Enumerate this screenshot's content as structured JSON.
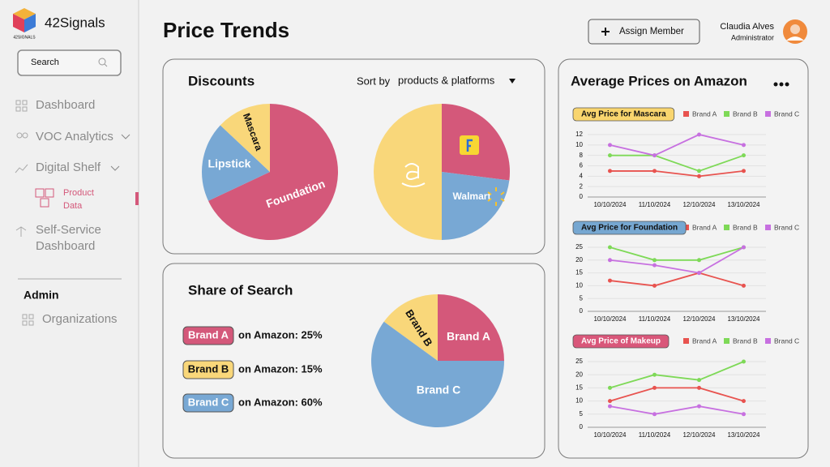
{
  "sidebar": {
    "brand": "42Signals",
    "brand_small": "42SIGNALS",
    "search": "Search",
    "menu": [
      "Dashboard",
      "VOC Analytics",
      "Digital Shelf",
      "Product Data",
      "Self-Service Dashboard"
    ],
    "admin": "Admin",
    "admin_menu": [
      "Organizations"
    ]
  },
  "header": {
    "title": "Price Trends",
    "button": "Assign Member",
    "user_name": "Claudia Alves",
    "user_role": "Administrator"
  },
  "discounts": {
    "title": "Discounts",
    "sort_label": "Sort by",
    "sort_value": "products & platforms",
    "charts": [
      {
        "type": "pie",
        "categories": [
          "Foundation",
          "Lipstick",
          "Mascara"
        ],
        "values": [
          68,
          19,
          13
        ],
        "colors": [
          "#d4587a",
          "#78a8d4",
          "#f9d77a"
        ]
      },
      {
        "type": "pie",
        "categories": [
          null,
          "Walmart",
          null
        ],
        "values": [
          27,
          23,
          50
        ],
        "colors": [
          "#d4587a",
          "#78a8d4",
          "#f9d77a"
        ]
      }
    ]
  },
  "share_of_search": {
    "title": "Share of Search",
    "chart": {
      "type": "pie",
      "categories": [
        "Brand A",
        "Brand B",
        "Brand C"
      ],
      "values": [
        25,
        15,
        60
      ],
      "value_labels": [
        "on Amazon: 25%",
        "on Amazon: 15%",
        "on Amazon: 60%"
      ],
      "colors": [
        "#d4587a",
        "#f9d77a",
        "#78a8d4"
      ]
    }
  },
  "avg_prices": {
    "title": "Average Prices on Amazon",
    "charts": [
      {
        "type": "line",
        "title": "Avg Price for Mascara",
        "title_color": "#f9d56e",
        "x": [
          "10/10/2024",
          "11/10/2024",
          "12/10/2024",
          "13/10/2024"
        ],
        "series": [
          {
            "name": "Brand A",
            "color": "#e8534f",
            "values": [
              5,
              5,
              4,
              5
            ]
          },
          {
            "name": "Brand B",
            "color": "#7ed957",
            "values": [
              8,
              8,
              5,
              8
            ]
          },
          {
            "name": "Brand C",
            "color": "#c770e0",
            "values": [
              10,
              8,
              12,
              10
            ]
          }
        ],
        "ylim": [
          0,
          12
        ],
        "yticks": [
          0,
          2,
          4,
          6,
          8,
          10,
          12
        ],
        "grid": true
      },
      {
        "type": "line",
        "title": "Avg Price for Foundation",
        "title_color": "#76a7d1",
        "x": [
          "10/10/2024",
          "11/10/2024",
          "12/10/2024",
          "13/10/2024"
        ],
        "series": [
          {
            "name": "Brand A",
            "color": "#e8534f",
            "values": [
              12,
              10,
              15,
              10
            ]
          },
          {
            "name": "Brand B",
            "color": "#7ed957",
            "values": [
              25,
              20,
              20,
              25
            ]
          },
          {
            "name": "Brand C",
            "color": "#c770e0",
            "values": [
              20,
              18,
              15,
              25
            ]
          }
        ],
        "ylim": [
          0,
          25
        ],
        "yticks": [
          0,
          5,
          10,
          15,
          20,
          25
        ],
        "grid": true
      },
      {
        "type": "line",
        "title": "Avg Price of Makeup",
        "title_color": "#d9577a",
        "x": [
          "10/10/2024",
          "11/10/2024",
          "12/10/2024",
          "13/10/2024"
        ],
        "series": [
          {
            "name": "Brand A",
            "color": "#e8534f",
            "values": [
              10,
              15,
              15,
              10
            ]
          },
          {
            "name": "Brand B",
            "color": "#7ed957",
            "values": [
              15,
              20,
              18,
              25
            ]
          },
          {
            "name": "Brand C",
            "color": "#c770e0",
            "values": [
              8,
              5,
              8,
              5
            ]
          }
        ],
        "ylim": [
          0,
          25
        ],
        "yticks": [
          0,
          5,
          10,
          15,
          20,
          25
        ],
        "grid": true
      }
    ]
  }
}
